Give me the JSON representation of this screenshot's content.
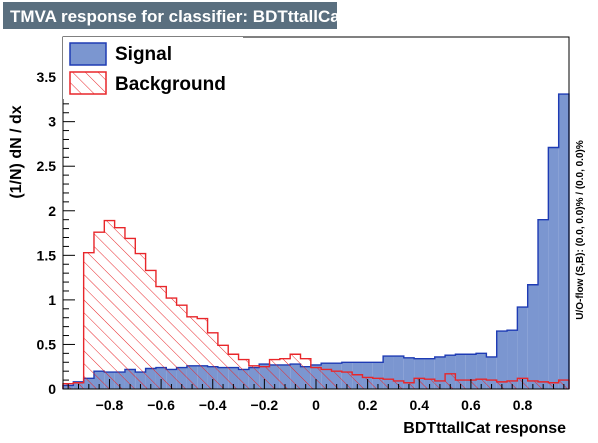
{
  "colors": {
    "title_bg": "#5a6f7f",
    "title_fg": "#ffffff",
    "signal_fill": "#7b96d0",
    "signal_line": "#1e3bb4",
    "background_line": "#e8262a",
    "axis": "#000000"
  },
  "chart_data": {
    "type": "histogram",
    "title": "TMVA response for classifier: BDTttallCat",
    "xlabel": "BDTttallCat response",
    "ylabel": "(1/N)  dN / dx",
    "overflow_label": "U/O-flow (S,B): (0.0, 0.0)% / (0.0, 0.0)%",
    "xlim": [
      -0.98,
      0.98
    ],
    "ylim": [
      0,
      3.95
    ],
    "xticks": [
      -0.8,
      -0.6,
      -0.4,
      -0.2,
      0,
      0.2,
      0.4,
      0.6,
      0.8
    ],
    "xtick_labels": [
      "−0.8",
      "−0.6",
      "−0.4",
      "−0.2",
      "0",
      "0.2",
      "0.4",
      "0.6",
      "0.8"
    ],
    "yticks": [
      0,
      0.5,
      1,
      1.5,
      2,
      2.5,
      3,
      3.5
    ],
    "ytick_labels": [
      "0",
      "0.5",
      "1",
      "1.5",
      "2",
      "2.5",
      "3",
      "3.5"
    ],
    "bins": {
      "start": -0.98,
      "width": 0.04,
      "count": 49
    },
    "legend": [
      {
        "key": "signal",
        "label": "Signal"
      },
      {
        "key": "background",
        "label": "Background"
      }
    ],
    "series": [
      {
        "name": "Signal",
        "key": "signal",
        "style": "filled",
        "values": [
          0.04,
          0.08,
          0.12,
          0.2,
          0.19,
          0.19,
          0.22,
          0.19,
          0.23,
          0.24,
          0.22,
          0.24,
          0.26,
          0.26,
          0.25,
          0.24,
          0.24,
          0.22,
          0.24,
          0.28,
          0.27,
          0.27,
          0.28,
          0.25,
          0.27,
          0.29,
          0.29,
          0.3,
          0.3,
          0.3,
          0.3,
          0.37,
          0.37,
          0.35,
          0.34,
          0.34,
          0.36,
          0.38,
          0.39,
          0.39,
          0.4,
          0.36,
          0.65,
          0.66,
          0.92,
          1.17,
          1.9,
          2.71,
          3.31
        ]
      },
      {
        "name": "Background",
        "key": "background",
        "style": "hatched",
        "values": [
          0.06,
          0.07,
          1.53,
          1.76,
          1.89,
          1.81,
          1.69,
          1.52,
          1.33,
          1.15,
          1.02,
          0.94,
          0.81,
          0.79,
          0.63,
          0.49,
          0.39,
          0.33,
          0.26,
          0.25,
          0.33,
          0.34,
          0.39,
          0.34,
          0.24,
          0.22,
          0.2,
          0.19,
          0.16,
          0.13,
          0.12,
          0.11,
          0.09,
          0.07,
          0.12,
          0.11,
          0.09,
          0.17,
          0.1,
          0.1,
          0.11,
          0.1,
          0.08,
          0.09,
          0.12,
          0.09,
          0.08,
          0.07,
          0.1
        ]
      }
    ]
  }
}
